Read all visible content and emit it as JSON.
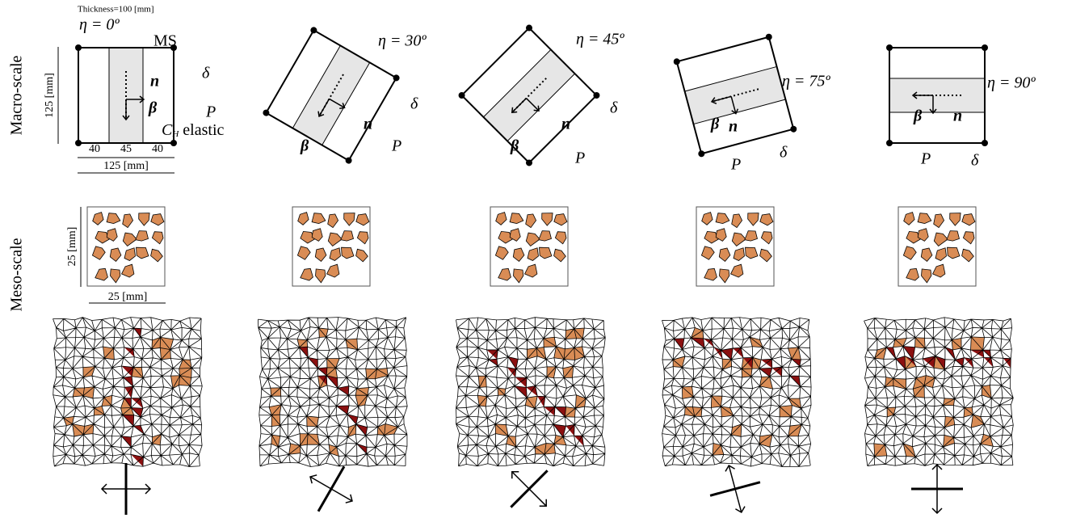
{
  "row_labels": [
    "Macro-scale",
    "Meso-scale"
  ],
  "thickness": "Thickness=100 [mm]",
  "panel0": {
    "ms": "MS",
    "ch_symbol": "C",
    "ch_subscript": "H",
    "ch_text": " elastic",
    "height": "125 [mm]",
    "widths": [
      "40",
      "45",
      "40"
    ],
    "width": "125 [mm]"
  },
  "meso": {
    "height": "25 [mm]",
    "width": "25 [mm]"
  },
  "macro_panels": [
    {
      "eta": "η = 0º",
      "n": "n",
      "beta": "β",
      "P": "P",
      "delta": "δ"
    },
    {
      "eta": "η = 30º",
      "n": "n",
      "beta": "β",
      "P": "P",
      "delta": "δ"
    },
    {
      "eta": "η = 45º",
      "n": "n",
      "beta": "β",
      "P": "P",
      "delta": "δ"
    },
    {
      "eta": "η = 75º",
      "n": "n",
      "beta": "β",
      "P": "P",
      "delta": "δ"
    },
    {
      "eta": "η = 90º",
      "n": "n",
      "beta": "β",
      "P": "P",
      "delta": "δ"
    }
  ]
}
